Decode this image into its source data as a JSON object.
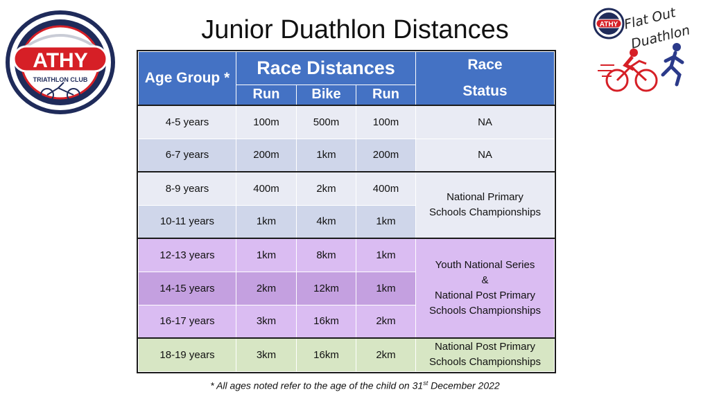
{
  "title": "Junior Duathlon Distances",
  "logo_left": {
    "name": "ATHY",
    "sub": "TRIATHLON CLUB"
  },
  "logo_right": {
    "badge": "ATHY",
    "line1": "Flat Out",
    "line2": "Duathlon"
  },
  "table": {
    "header": {
      "age_group": "Age Group *",
      "race_distances": "Race Distances",
      "race_status": "Race Status",
      "run1": "Run",
      "bike": "Bike",
      "run2": "Run"
    },
    "rows": [
      {
        "age": "4-5 years",
        "run1": "100m",
        "bike": "500m",
        "run2": "100m"
      },
      {
        "age": "6-7 years",
        "run1": "200m",
        "bike": "1km",
        "run2": "200m"
      },
      {
        "age": "8-9 years",
        "run1": "400m",
        "bike": "2km",
        "run2": "400m"
      },
      {
        "age": "10-11 years",
        "run1": "1km",
        "bike": "4km",
        "run2": "1km"
      },
      {
        "age": "12-13 years",
        "run1": "1km",
        "bike": "8km",
        "run2": "1km"
      },
      {
        "age": "14-15 years",
        "run1": "2km",
        "bike": "12km",
        "run2": "1km"
      },
      {
        "age": "16-17 years",
        "run1": "3km",
        "bike": "16km",
        "run2": "2km"
      },
      {
        "age": "18-19 years",
        "run1": "3km",
        "bike": "16km",
        "run2": "2km"
      }
    ],
    "status": {
      "s1": "NA",
      "s2": "NA",
      "s3_l1": "National Primary",
      "s3_l2": "Schools Championships",
      "s4_l1": "Youth National Series",
      "s4_l2": "&",
      "s4_l3": "National Post Primary",
      "s4_l4": "Schools Championships",
      "s5_l1": "National Post Primary",
      "s5_l2": "Schools Championships"
    }
  },
  "footnote": {
    "pre": "* All ages noted refer to the age of the child on 31",
    "sup": "st",
    "post": " December 2022"
  },
  "colors": {
    "header": "#4472c4",
    "blue_light": "#e9ebf4",
    "blue_mid": "#cfd6ea",
    "purple_light": "#dabcf2",
    "purple_dark": "#c4a0e0",
    "green": "#d7e6c4"
  }
}
